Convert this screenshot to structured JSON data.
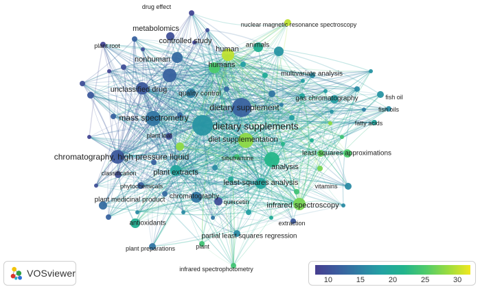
{
  "app": {
    "brand": "VOSviewer"
  },
  "colors": {
    "scale": [
      "#463e8f",
      "#3b5c9e",
      "#2f7fa4",
      "#23a2a3",
      "#22b48c",
      "#4fcb6a",
      "#9bdc3f",
      "#f1e81f"
    ],
    "min_value": 8,
    "max_value": 32
  },
  "legend": {
    "ticks": [
      {
        "label": "10",
        "value": 10
      },
      {
        "label": "15",
        "value": 15
      },
      {
        "label": "20",
        "value": 20
      },
      {
        "label": "25",
        "value": 25
      },
      {
        "label": "30",
        "value": 30
      }
    ]
  },
  "nodes": [
    {
      "label": "drug effect",
      "score": 9,
      "weight": 1,
      "name": "node-drug-effect"
    },
    {
      "label": "metabolomics",
      "score": 10,
      "weight": 2,
      "name": "node-metabolomics"
    },
    {
      "label": "nuclear magnetic resonance spectroscopy",
      "score": 30,
      "weight": 1,
      "name": "node-nmr-spectroscopy"
    },
    {
      "label": "controlled study",
      "score": 13,
      "weight": 2,
      "name": "node-controlled-study"
    },
    {
      "label": "plant root",
      "score": 9,
      "weight": 1,
      "name": "node-plant-root"
    },
    {
      "label": "human",
      "score": 30,
      "weight": 2,
      "name": "node-human"
    },
    {
      "label": "animals",
      "score": 21,
      "weight": 2,
      "name": "node-animals"
    },
    {
      "label": "nonhuman",
      "score": 12,
      "weight": 3,
      "name": "node-nonhuman"
    },
    {
      "label": "humans",
      "score": 25,
      "weight": 2,
      "name": "node-humans"
    },
    {
      "label": "multivariate analysis",
      "score": 16,
      "weight": 1,
      "name": "node-multivariate-analysis"
    },
    {
      "label": "unclassified drug",
      "score": 11,
      "weight": 3,
      "name": "node-unclassified-drug"
    },
    {
      "label": "quality control",
      "score": 15,
      "weight": 2,
      "name": "node-quality-control"
    },
    {
      "label": "fish oil",
      "score": 17,
      "weight": 1,
      "name": "node-fish-oil"
    },
    {
      "label": "gas chromatography",
      "score": 18,
      "weight": 2,
      "name": "node-gas-chromatography"
    },
    {
      "label": "dietary supplement",
      "score": 12,
      "weight": 4,
      "name": "node-dietary-supplement"
    },
    {
      "label": "fish oils",
      "score": 16,
      "weight": 1,
      "name": "node-fish-oils"
    },
    {
      "label": "mass spectrometry",
      "score": 14,
      "weight": 3,
      "name": "node-mass-spectrometry"
    },
    {
      "label": "dietary supplements",
      "score": 17,
      "weight": 5,
      "name": "node-dietary-supplements"
    },
    {
      "label": "fatty acids",
      "score": 19,
      "weight": 1,
      "name": "node-fatty-acids"
    },
    {
      "label": "plant leaf",
      "score": 10,
      "weight": 1,
      "name": "node-plant-leaf"
    },
    {
      "label": "diet supplementation",
      "score": 28,
      "weight": 3,
      "name": "node-diet-supplementation"
    },
    {
      "label": "least squares approximations",
      "score": 25,
      "weight": 2,
      "name": "node-least-squares-approximations"
    },
    {
      "label": "chromatography, high pressure liquid",
      "score": 11,
      "weight": 3,
      "name": "node-hplc"
    },
    {
      "label": "sibutramine",
      "score": 24,
      "weight": 1,
      "name": "node-sibutramine"
    },
    {
      "label": "analysis",
      "score": 22,
      "weight": 3,
      "name": "node-analysis"
    },
    {
      "label": "classification",
      "score": 10,
      "weight": 1,
      "name": "node-classification"
    },
    {
      "label": "plant extracts",
      "score": 19,
      "weight": 2,
      "name": "node-plant-extracts"
    },
    {
      "label": "phytochemicals",
      "score": 12,
      "weight": 1,
      "name": "node-phytochemicals"
    },
    {
      "label": "least-squares analysis",
      "score": 19,
      "weight": 2,
      "name": "node-least-squares-analysis"
    },
    {
      "label": "vitamins",
      "score": 16,
      "weight": 1,
      "name": "node-vitamins"
    },
    {
      "label": "chromatography",
      "score": 14,
      "weight": 2,
      "name": "node-chromatography"
    },
    {
      "label": "plant medicinal product",
      "score": 13,
      "weight": 1,
      "name": "node-plant-medicinal-product"
    },
    {
      "label": "quercetin",
      "score": 10,
      "weight": 1,
      "name": "node-quercetin"
    },
    {
      "label": "infrared spectroscopy",
      "score": 27,
      "weight": 3,
      "name": "node-infrared-spectroscopy"
    },
    {
      "label": "antioxidants",
      "score": 21,
      "weight": 2,
      "name": "node-antioxidants"
    },
    {
      "label": "extraction",
      "score": 11,
      "weight": 1,
      "name": "node-extraction"
    },
    {
      "label": "partial least squares regression",
      "score": 16,
      "weight": 1,
      "name": "node-pls-regression"
    },
    {
      "label": "plant preparations",
      "score": 14,
      "weight": 1,
      "name": "node-plant-preparations"
    },
    {
      "label": "plant",
      "score": 24,
      "weight": 1,
      "name": "node-plant"
    },
    {
      "label": "infrared spectrophotometry",
      "score": 24,
      "weight": 1,
      "name": "node-infrared-spectrophotometry"
    }
  ]
}
